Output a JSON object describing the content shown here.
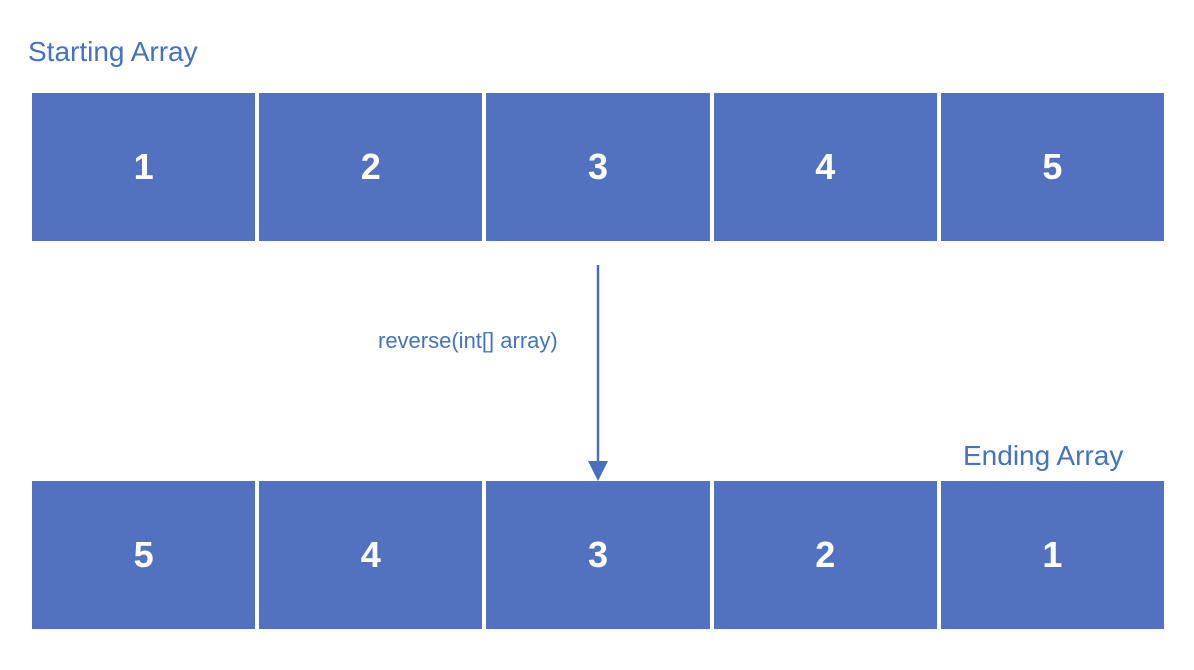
{
  "starting_array": {
    "title": "Starting Array",
    "values": [
      "1",
      "2",
      "3",
      "4",
      "5"
    ]
  },
  "operation": {
    "label": "reverse(int[] array)"
  },
  "ending_array": {
    "title": "Ending Array",
    "values": [
      "5",
      "4",
      "3",
      "2",
      "1"
    ]
  },
  "colors": {
    "cell_fill": "#5272bf",
    "cell_text": "#ffffff",
    "label_text": "#4472c4",
    "arrow": "#4a6fbf"
  }
}
